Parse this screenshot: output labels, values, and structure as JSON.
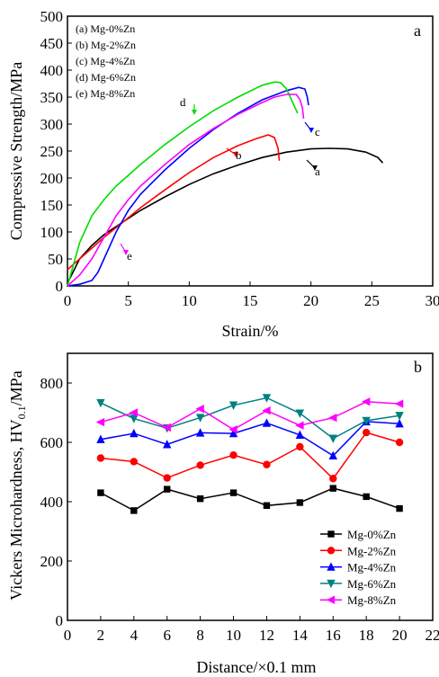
{
  "chart_data": [
    {
      "type": "line",
      "panel_label": "a",
      "xlabel": "Strain/%",
      "ylabel": "Compressive Strength/MPa",
      "xlim": [
        0,
        30
      ],
      "ylim": [
        0,
        500
      ],
      "xticks": [
        0,
        5,
        10,
        15,
        20,
        25,
        30
      ],
      "yticks": [
        0,
        50,
        100,
        150,
        200,
        250,
        300,
        350,
        400,
        450,
        500
      ],
      "legend_placement": "top-left",
      "legend": [
        "(a) Mg-0%Zn",
        "(b) Mg-2%Zn",
        "(c) Mg-4%Zn",
        "(d) Mg-6%Zn",
        "(e) Mg-8%Zn"
      ],
      "series": [
        {
          "name": "(a) Mg-0%Zn",
          "color": "#000000",
          "x": [
            0,
            1,
            2,
            3,
            4,
            6,
            8,
            10,
            12,
            14,
            16,
            18,
            20,
            21.5,
            23,
            24.5,
            25.5,
            25.9
          ],
          "y": [
            5,
            50,
            75,
            95,
            110,
            140,
            165,
            188,
            208,
            224,
            238,
            248,
            254,
            255,
            254,
            248,
            238,
            228
          ]
        },
        {
          "name": "(b) Mg-2%Zn",
          "color": "#ff0000",
          "x": [
            0,
            1,
            2,
            3,
            4,
            6,
            8,
            10,
            12,
            14,
            15.5,
            16.5,
            17,
            17.3,
            17.4
          ],
          "y": [
            30,
            50,
            70,
            90,
            108,
            145,
            178,
            210,
            238,
            260,
            273,
            280,
            275,
            255,
            232
          ]
        },
        {
          "name": "(c) Mg-4%Zn",
          "color": "#0000ff",
          "x": [
            0,
            1,
            2,
            2.5,
            3,
            4,
            5,
            6,
            8,
            10,
            12,
            14,
            16,
            18,
            19,
            19.5,
            19.7,
            19.8
          ],
          "y": [
            0,
            3,
            10,
            25,
            50,
            100,
            140,
            170,
            215,
            255,
            290,
            320,
            345,
            362,
            368,
            365,
            350,
            335
          ]
        },
        {
          "name": "(d) Mg-6%Zn",
          "color": "#00dd00",
          "x": [
            0,
            0.5,
            1,
            2,
            3,
            4,
            6,
            8,
            10,
            12,
            14,
            16,
            17,
            17.5,
            18,
            18.4,
            18.7,
            18.9
          ],
          "y": [
            0,
            40,
            80,
            130,
            160,
            185,
            225,
            262,
            295,
            325,
            350,
            372,
            378,
            377,
            365,
            345,
            330,
            320
          ]
        },
        {
          "name": "(e) Mg-8%Zn",
          "color": "#ff00ff",
          "x": [
            0,
            1,
            2,
            3,
            4,
            5,
            6,
            8,
            10,
            12,
            14,
            16,
            17,
            18,
            18.8,
            19.1,
            19.3,
            19.4
          ],
          "y": [
            0,
            20,
            50,
            90,
            130,
            160,
            185,
            225,
            262,
            292,
            318,
            340,
            350,
            355,
            355,
            345,
            330,
            310
          ]
        }
      ],
      "annotations": [
        "a",
        "b",
        "c",
        "d",
        "e"
      ]
    },
    {
      "type": "line",
      "panel_label": "b",
      "xlabel": "Distance/×0.1 mm",
      "ylabel": "Vickers Microhardness, HV",
      "ylabel_sub": "0.1",
      "ylabel_unit": "/MPa",
      "xlim": [
        0,
        22
      ],
      "ylim": [
        0,
        900
      ],
      "xticks": [
        0,
        2,
        4,
        6,
        8,
        10,
        12,
        14,
        16,
        18,
        20,
        22
      ],
      "yticks": [
        0,
        200,
        400,
        600,
        800
      ],
      "legend_placement": "bottom-right",
      "x": [
        2,
        4,
        6,
        8,
        10,
        12,
        14,
        16,
        18,
        20
      ],
      "series": [
        {
          "name": "Mg-0%Zn",
          "color": "#000000",
          "marker": "square",
          "values": [
            430,
            370,
            442,
            410,
            430,
            387,
            397,
            445,
            417,
            377
          ]
        },
        {
          "name": "Mg-2%Zn",
          "color": "#ff0000",
          "marker": "circle",
          "values": [
            547,
            535,
            480,
            523,
            557,
            525,
            585,
            478,
            633,
            600
          ]
        },
        {
          "name": "Mg-4%Zn",
          "color": "#0000ff",
          "marker": "triangle-up",
          "values": [
            610,
            630,
            593,
            632,
            630,
            665,
            625,
            555,
            670,
            663
          ]
        },
        {
          "name": "Mg-6%Zn",
          "color": "#008080",
          "marker": "triangle-down",
          "values": [
            733,
            680,
            648,
            683,
            725,
            750,
            698,
            613,
            673,
            690
          ]
        },
        {
          "name": "Mg-8%Zn",
          "color": "#ff00ff",
          "marker": "triangle-left",
          "values": [
            668,
            700,
            650,
            713,
            643,
            707,
            657,
            683,
            737,
            730
          ]
        }
      ]
    }
  ]
}
